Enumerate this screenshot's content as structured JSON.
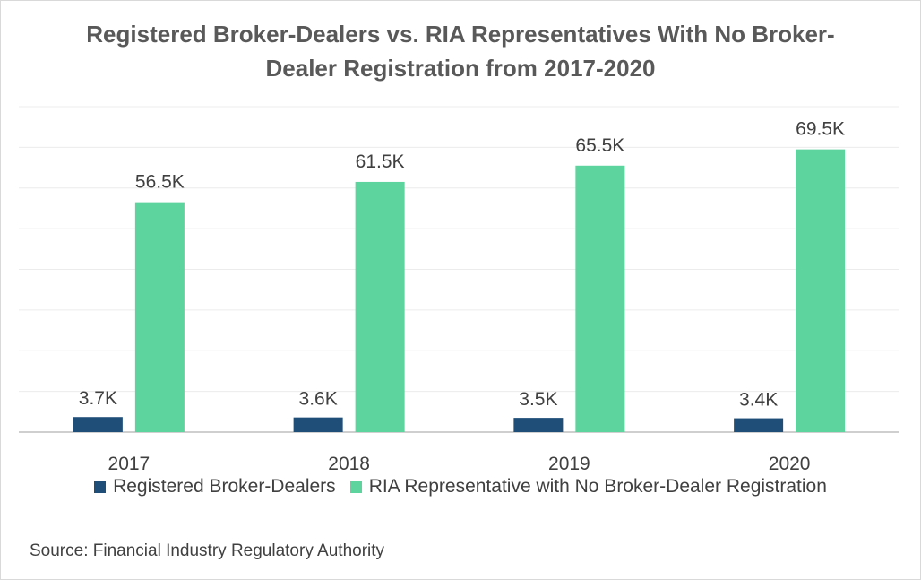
{
  "colors": {
    "broker": "#1f4e79",
    "ria": "#5dd39e",
    "grid": "#ececec",
    "axis": "#bfbfbf",
    "label": "#404040"
  },
  "chart_data": {
    "type": "bar",
    "title": "Registered Broker-Dealers vs. RIA Representatives With No Broker-Dealer Registration from 2017-2020",
    "categories": [
      "2017",
      "2018",
      "2019",
      "2020"
    ],
    "series": [
      {
        "name": "Registered Broker-Dealers",
        "values": [
          3.7,
          3.6,
          3.5,
          3.4
        ],
        "labels": [
          "3.7K",
          "3.6K",
          "3.5K",
          "3.4K"
        ],
        "color": "#1f4e79"
      },
      {
        "name": "RIA Representative with No Broker-Dealer Registration",
        "values": [
          56.5,
          61.5,
          65.5,
          69.5
        ],
        "labels": [
          "56.5K",
          "61.5K",
          "65.5K",
          "69.5K"
        ],
        "color": "#5dd39e"
      }
    ],
    "ylim": [
      0,
      80
    ],
    "ystep": 10,
    "grid": true,
    "xlabel": "",
    "ylabel": "",
    "legend_position": "bottom",
    "source": "Source: Financial Industry Regulatory Authority"
  }
}
